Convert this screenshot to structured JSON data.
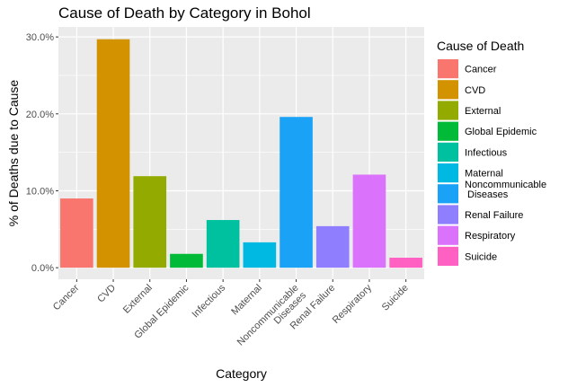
{
  "chart_data": {
    "type": "bar",
    "title": "Cause of Death by Category in Bohol",
    "xlabel": "Category",
    "ylabel": "% of Deaths due to Cause",
    "categories": [
      "Cancer",
      "CVD",
      "External",
      "Global Epidemic",
      "Infectious",
      "Maternal",
      "Noncommunicable\nDiseases",
      "Renal Failure",
      "Respiratory",
      "Suicide"
    ],
    "values": [
      9.0,
      29.7,
      11.9,
      1.8,
      6.2,
      3.3,
      19.6,
      5.4,
      12.1,
      1.3
    ],
    "colors": [
      "#F8766D",
      "#D39200",
      "#93AA00",
      "#00BA38",
      "#00C19F",
      "#00B9E3",
      "#1AA2F6",
      "#8F7FFF",
      "#DB72FB",
      "#FF61C3"
    ],
    "ylim": [
      -1.5,
      31.3
    ],
    "yticks": [
      0,
      10,
      20,
      30
    ],
    "ytick_labels": [
      "0.0%",
      "10.0%",
      "20.0%",
      "30.0%"
    ],
    "legend_title": "Cause of Death",
    "legend_labels": [
      "Cancer",
      "CVD",
      "External",
      "Global Epidemic",
      "Infectious",
      "Maternal",
      "Noncommunicable\nDiseases",
      "Renal Failure",
      "Respiratory",
      "Suicide"
    ],
    "legend_position": "right",
    "grid": true,
    "panel_background": "#EBEBEB"
  }
}
